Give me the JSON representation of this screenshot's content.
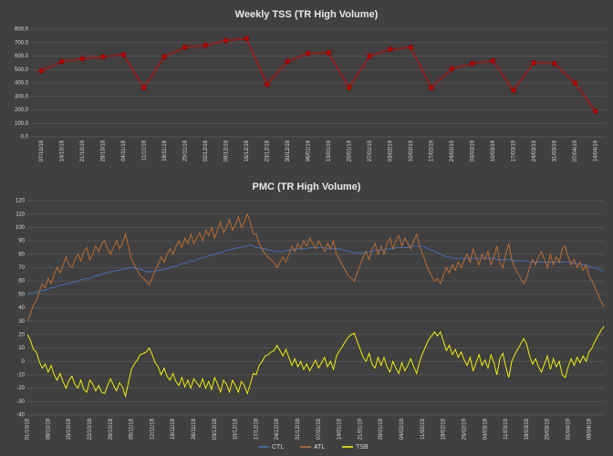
{
  "chart_data": [
    {
      "type": "line",
      "title": "Weekly TSS (TR High Volume)",
      "categories": [
        "07/10/18",
        "14/10/18",
        "21/10/18",
        "28/10/18",
        "04/11/18",
        "11/11/18",
        "18/11/18",
        "25/11/18",
        "02/12/18",
        "09/12/18",
        "16/12/18",
        "23/12/18",
        "30/12/18",
        "06/01/19",
        "13/01/19",
        "20/01/19",
        "27/01/19",
        "03/02/19",
        "10/02/19",
        "17/02/19",
        "24/02/19",
        "03/03/19",
        "10/03/19",
        "17/03/19",
        "24/03/19",
        "31/03/19",
        "07/04/19",
        "14/04/19"
      ],
      "series": [
        {
          "name": "TSS",
          "color": "#c00000",
          "values": [
            490,
            560,
            580,
            595,
            610,
            365,
            595,
            665,
            680,
            715,
            730,
            390,
            560,
            620,
            625,
            365,
            600,
            650,
            665,
            365,
            505,
            545,
            565,
            345,
            550,
            545,
            400,
            190
          ]
        }
      ],
      "ylim": [
        0,
        800
      ],
      "yticks": [
        {
          "value": 0,
          "label": "0.0"
        },
        {
          "value": 100,
          "label": "100.0"
        },
        {
          "value": 200,
          "label": "200.0"
        },
        {
          "value": 300,
          "label": "300.0"
        },
        {
          "value": 400,
          "label": "400.0"
        },
        {
          "value": 500,
          "label": "500.0"
        },
        {
          "value": 600,
          "label": "600.0"
        },
        {
          "value": 700,
          "label": "700.0"
        },
        {
          "value": 800,
          "label": "800.0"
        }
      ],
      "grid": true
    },
    {
      "type": "line",
      "title": "PMC (TR High Volume)",
      "categories": [
        "01/10/18",
        null,
        null,
        null,
        null,
        null,
        null,
        "08/10/18",
        null,
        null,
        null,
        null,
        null,
        null,
        "15/10/18",
        null,
        null,
        null,
        null,
        null,
        null,
        "22/10/18",
        null,
        null,
        null,
        null,
        null,
        null,
        "29/10/18",
        null,
        null,
        null,
        null,
        null,
        null,
        "05/11/18",
        null,
        null,
        null,
        null,
        null,
        null,
        "12/11/18",
        null,
        null,
        null,
        null,
        null,
        null,
        "19/11/18",
        null,
        null,
        null,
        null,
        null,
        null,
        "26/11/18",
        null,
        null,
        null,
        null,
        null,
        null,
        "03/12/18",
        null,
        null,
        null,
        null,
        null,
        null,
        "10/12/18",
        null,
        null,
        null,
        null,
        null,
        null,
        "17/12/18",
        null,
        null,
        null,
        null,
        null,
        null,
        "24/12/18",
        null,
        null,
        null,
        null,
        null,
        null,
        "31/12/18",
        null,
        null,
        null,
        null,
        null,
        null,
        "07/01/19",
        null,
        null,
        null,
        null,
        null,
        null,
        "14/01/19",
        null,
        null,
        null,
        null,
        null,
        null,
        "21/01/19",
        null,
        null,
        null,
        null,
        null,
        null,
        "28/01/19",
        null,
        null,
        null,
        null,
        null,
        null,
        "04/02/19",
        null,
        null,
        null,
        null,
        null,
        null,
        "11/02/19",
        null,
        null,
        null,
        null,
        null,
        null,
        "18/02/19",
        null,
        null,
        null,
        null,
        null,
        null,
        "25/02/19",
        null,
        null,
        null,
        null,
        null,
        null,
        "04/03/19",
        null,
        null,
        null,
        null,
        null,
        null,
        "11/03/19",
        null,
        null,
        null,
        null,
        null,
        null,
        "18/03/19",
        null,
        null,
        null,
        null,
        null,
        null,
        "25/03/19",
        null,
        null,
        null,
        null,
        null,
        null,
        "01/04/19",
        null,
        null,
        null,
        null,
        null,
        null,
        "08/04/19",
        null,
        null,
        null,
        null,
        null
      ],
      "series": [
        {
          "name": "CTL",
          "color": "#4472c4",
          "values": [
            50,
            51,
            51,
            52,
            52,
            53,
            53,
            54,
            55,
            55,
            56,
            57,
            57,
            58,
            58,
            59,
            59,
            60,
            61,
            61,
            62,
            62,
            63,
            64,
            64,
            65,
            66,
            66,
            67,
            67,
            68,
            68,
            69,
            69,
            70,
            70,
            70,
            69,
            69,
            68,
            67,
            67,
            67,
            67,
            68,
            68,
            69,
            69,
            70,
            71,
            71,
            72,
            73,
            73,
            74,
            75,
            75,
            76,
            77,
            77,
            78,
            79,
            79,
            80,
            81,
            81,
            82,
            83,
            83,
            84,
            84,
            85,
            85,
            86,
            86,
            87,
            86,
            85,
            85,
            84,
            84,
            83,
            83,
            82,
            82,
            82,
            82,
            83,
            83,
            83,
            84,
            84,
            84,
            84,
            84,
            85,
            85,
            85,
            85,
            85,
            85,
            84,
            84,
            84,
            84,
            84,
            83,
            83,
            82,
            82,
            81,
            81,
            81,
            81,
            82,
            82,
            82,
            83,
            83,
            83,
            83,
            84,
            84,
            84,
            85,
            85,
            85,
            85,
            85,
            86,
            86,
            86,
            86,
            86,
            85,
            84,
            83,
            82,
            81,
            80,
            79,
            78,
            78,
            77,
            77,
            77,
            77,
            77,
            77,
            77,
            77,
            77,
            77,
            77,
            77,
            77,
            77,
            77,
            76,
            76,
            76,
            76,
            76,
            76,
            75,
            75,
            75,
            75,
            75,
            74,
            74,
            74,
            74,
            74,
            74,
            74,
            74,
            74,
            74,
            74,
            74,
            74,
            74,
            74,
            73,
            73,
            73,
            72,
            72,
            71,
            70,
            70,
            69,
            68,
            67
          ]
        },
        {
          "name": "ATL",
          "color": "#c8702f",
          "values": [
            30,
            35,
            42,
            45,
            52,
            58,
            55,
            62,
            58,
            65,
            70,
            66,
            72,
            78,
            72,
            70,
            76,
            80,
            75,
            82,
            85,
            76,
            80,
            86,
            82,
            88,
            90,
            84,
            80,
            85,
            90,
            84,
            88,
            95,
            86,
            76,
            72,
            68,
            64,
            62,
            60,
            57,
            62,
            68,
            72,
            78,
            74,
            80,
            84,
            80,
            86,
            90,
            85,
            92,
            88,
            95,
            88,
            92,
            96,
            90,
            98,
            94,
            100,
            92,
            98,
            104,
            96,
            100,
            106,
            98,
            102,
            108,
            100,
            104,
            110,
            104,
            95,
            95,
            88,
            84,
            80,
            78,
            76,
            74,
            70,
            74,
            78,
            74,
            80,
            86,
            82,
            88,
            84,
            90,
            86,
            92,
            88,
            84,
            90,
            86,
            82,
            88,
            84,
            90,
            80,
            76,
            72,
            68,
            64,
            62,
            60,
            66,
            72,
            78,
            82,
            76,
            84,
            88,
            80,
            86,
            80,
            88,
            92,
            84,
            90,
            94,
            86,
            92,
            88,
            84,
            90,
            95,
            86,
            80,
            74,
            68,
            64,
            60,
            62,
            58,
            64,
            70,
            66,
            72,
            68,
            74,
            70,
            76,
            80,
            74,
            84,
            78,
            72,
            80,
            76,
            82,
            72,
            78,
            86,
            74,
            70,
            80,
            88,
            76,
            70,
            66,
            62,
            58,
            62,
            70,
            76,
            72,
            78,
            82,
            76,
            70,
            80,
            72,
            78,
            74,
            84,
            86,
            78,
            72,
            76,
            70,
            74,
            68,
            72,
            64,
            60,
            55,
            50,
            45,
            41
          ]
        },
        {
          "name": "TSB",
          "color": "#ffff00",
          "values": [
            20,
            16,
            9,
            7,
            0,
            -5,
            -2,
            -8,
            -3,
            -10,
            -14,
            -9,
            -15,
            -20,
            -14,
            -11,
            -17,
            -20,
            -14,
            -21,
            -23,
            -14,
            -17,
            -22,
            -18,
            -23,
            -24,
            -18,
            -13,
            -18,
            -22,
            -16,
            -19,
            -26,
            -16,
            -6,
            -2,
            1,
            5,
            6,
            7,
            10,
            5,
            -1,
            -4,
            -10,
            -5,
            -11,
            -14,
            -9,
            -15,
            -18,
            -12,
            -19,
            -14,
            -20,
            -13,
            -16,
            -19,
            -13,
            -20,
            -15,
            -21,
            -12,
            -17,
            -23,
            -14,
            -17,
            -23,
            -14,
            -18,
            -23,
            -15,
            -18,
            -24,
            -17,
            -9,
            -10,
            -3,
            0,
            4,
            5,
            7,
            8,
            12,
            8,
            4,
            9,
            3,
            -3,
            2,
            -4,
            0,
            -6,
            -2,
            -7,
            -3,
            1,
            -5,
            -1,
            3,
            -4,
            0,
            -6,
            4,
            8,
            11,
            15,
            18,
            20,
            21,
            15,
            9,
            3,
            0,
            6,
            -2,
            -5,
            3,
            -3,
            3,
            -4,
            -8,
            0,
            -5,
            -9,
            -1,
            -7,
            -3,
            2,
            -4,
            -9,
            0,
            6,
            11,
            16,
            19,
            22,
            19,
            22,
            15,
            8,
            12,
            5,
            9,
            3,
            7,
            1,
            -3,
            3,
            -7,
            -1,
            5,
            -3,
            1,
            -5,
            5,
            -1,
            -10,
            2,
            6,
            -4,
            -12,
            0,
            5,
            9,
            13,
            17,
            13,
            4,
            -2,
            2,
            -4,
            -8,
            -2,
            4,
            -6,
            2,
            -4,
            0,
            -10,
            -12,
            -4,
            2,
            -3,
            3,
            -1,
            4,
            0,
            7,
            10,
            15,
            19,
            23,
            26
          ]
        }
      ],
      "ylim": [
        -40,
        120
      ],
      "yticks": [
        -40,
        -30,
        -20,
        -10,
        0,
        10,
        20,
        30,
        40,
        50,
        60,
        70,
        80,
        90,
        100,
        110,
        120
      ],
      "grid": true
    }
  ]
}
